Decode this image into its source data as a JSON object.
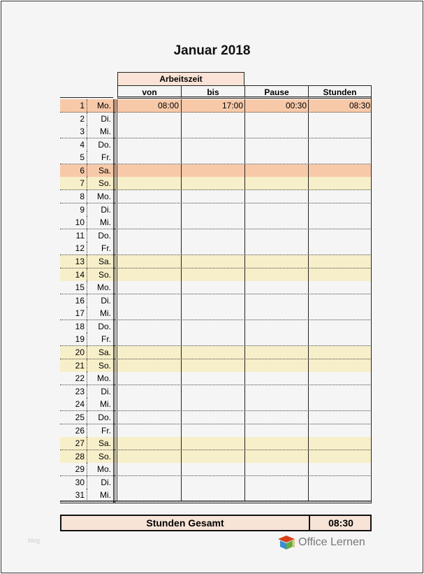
{
  "title": "Januar 2018",
  "headers": {
    "group": "Arbeitszeit",
    "von": "von",
    "bis": "bis",
    "pause": "Pause",
    "stunden": "Stunden"
  },
  "colors": {
    "holiday": "#f8c9a9",
    "weekend": "#f7efc9",
    "normal": "#f5f5f5"
  },
  "rows": [
    {
      "day": "1",
      "name": "Mo.",
      "type": "holiday",
      "von": "08:00",
      "bis": "17:00",
      "pause": "00:30",
      "stunden": "08:30"
    },
    {
      "day": "2",
      "name": "Di.",
      "type": "normal"
    },
    {
      "day": "3",
      "name": "Mi.",
      "type": "normal"
    },
    {
      "day": "4",
      "name": "Do.",
      "type": "normal"
    },
    {
      "day": "5",
      "name": "Fr.",
      "type": "normal"
    },
    {
      "day": "6",
      "name": "Sa.",
      "type": "holiday"
    },
    {
      "day": "7",
      "name": "So.",
      "type": "weekend"
    },
    {
      "day": "8",
      "name": "Mo.",
      "type": "normal"
    },
    {
      "day": "9",
      "name": "Di.",
      "type": "normal"
    },
    {
      "day": "10",
      "name": "Mi.",
      "type": "normal"
    },
    {
      "day": "11",
      "name": "Do.",
      "type": "normal"
    },
    {
      "day": "12",
      "name": "Fr.",
      "type": "normal"
    },
    {
      "day": "13",
      "name": "Sa.",
      "type": "weekend"
    },
    {
      "day": "14",
      "name": "So.",
      "type": "weekend"
    },
    {
      "day": "15",
      "name": "Mo.",
      "type": "normal"
    },
    {
      "day": "16",
      "name": "Di.",
      "type": "normal"
    },
    {
      "day": "17",
      "name": "Mi.",
      "type": "normal"
    },
    {
      "day": "18",
      "name": "Do.",
      "type": "normal"
    },
    {
      "day": "19",
      "name": "Fr.",
      "type": "normal"
    },
    {
      "day": "20",
      "name": "Sa.",
      "type": "weekend"
    },
    {
      "day": "21",
      "name": "So.",
      "type": "weekend"
    },
    {
      "day": "22",
      "name": "Mo.",
      "type": "normal"
    },
    {
      "day": "23",
      "name": "Di.",
      "type": "normal"
    },
    {
      "day": "24",
      "name": "Mi.",
      "type": "normal"
    },
    {
      "day": "25",
      "name": "Do.",
      "type": "normal"
    },
    {
      "day": "26",
      "name": "Fr.",
      "type": "normal"
    },
    {
      "day": "27",
      "name": "Sa.",
      "type": "weekend"
    },
    {
      "day": "28",
      "name": "So.",
      "type": "weekend"
    },
    {
      "day": "29",
      "name": "Mo.",
      "type": "normal"
    },
    {
      "day": "30",
      "name": "Di.",
      "type": "normal"
    },
    {
      "day": "31",
      "name": "Mi.",
      "type": "normal"
    }
  ],
  "total": {
    "label": "Stunden Gesamt",
    "value": "08:30"
  },
  "footer": {
    "blog": "blog",
    "logo": "Office Lernen",
    "logo_icon": "graduation-cap-icon"
  }
}
